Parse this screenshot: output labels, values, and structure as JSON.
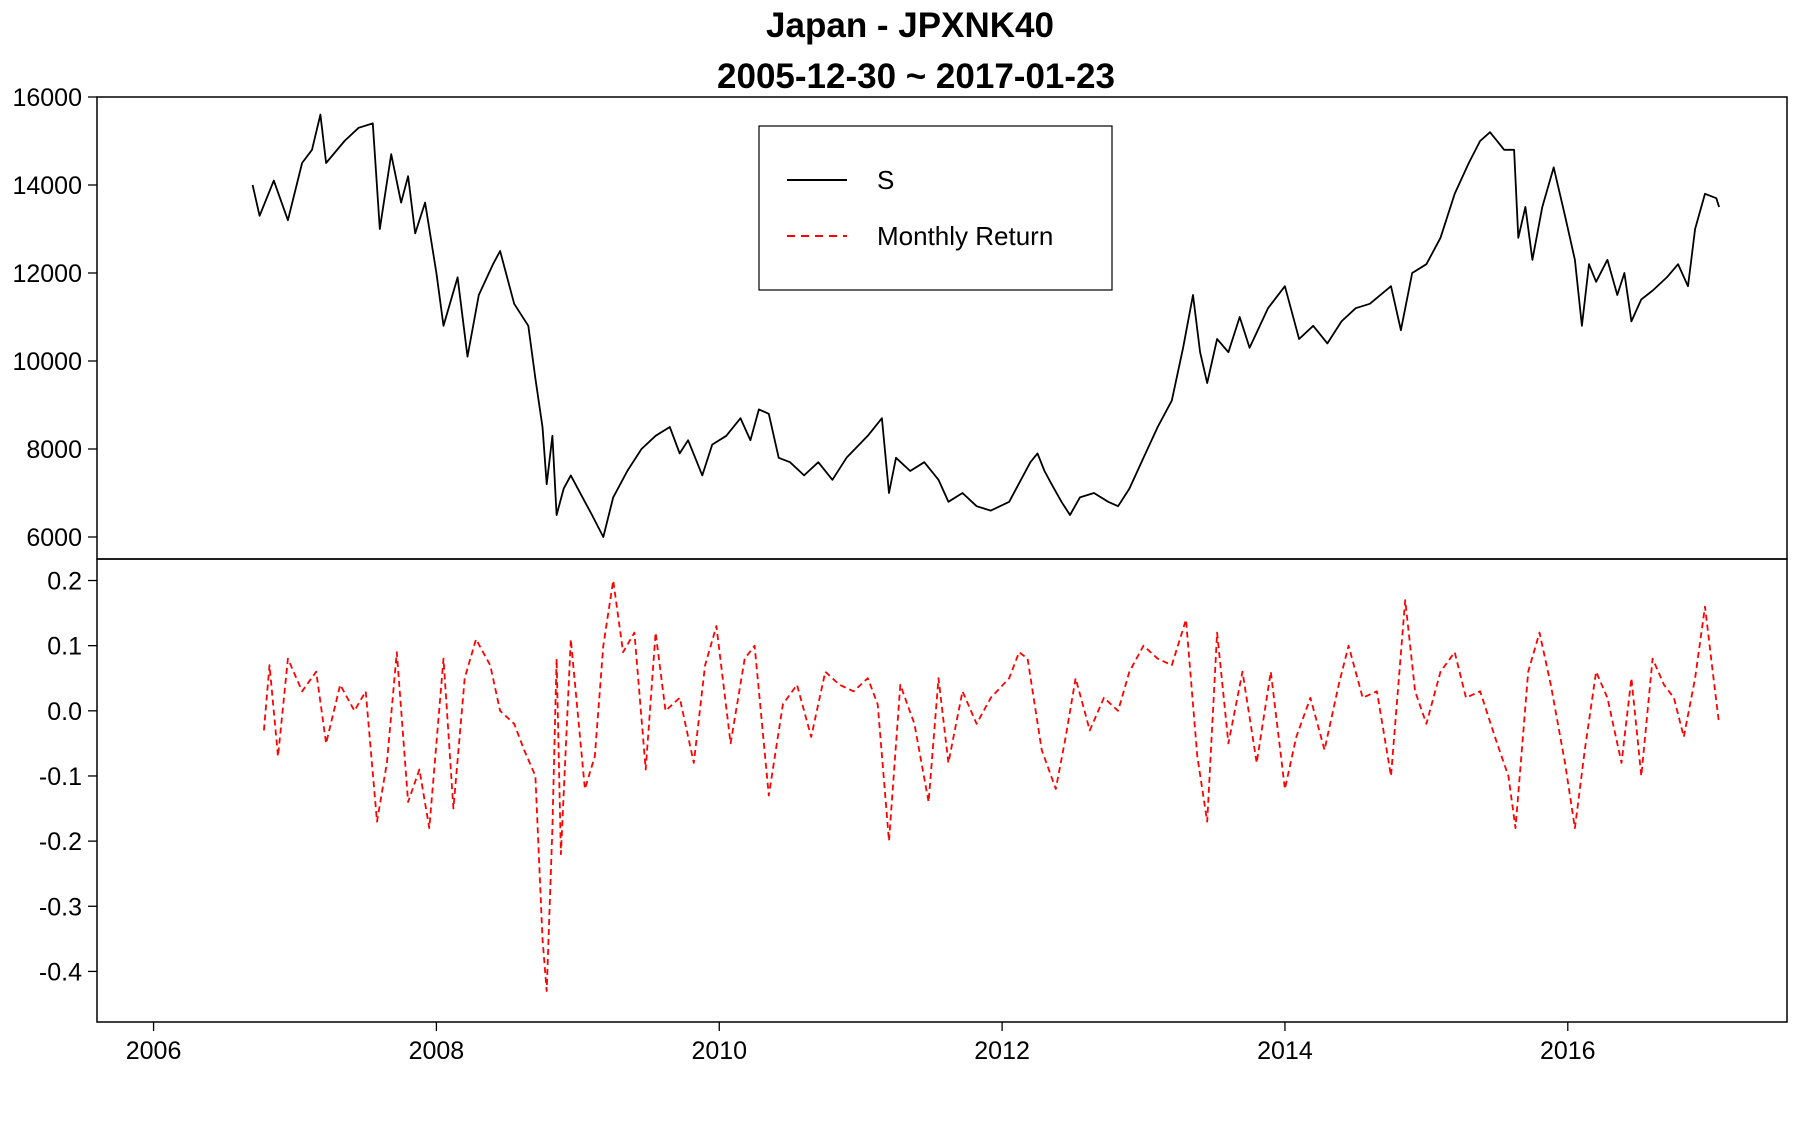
{
  "chart_data": {
    "type": "line",
    "title": "Japan - JPXNK40",
    "subtitle": "2005-12-30 ~ 2017-01-23",
    "xlabel": "",
    "ylabel": "",
    "x_range": [
      2005.6,
      2017.55
    ],
    "x_ticks": [
      "2006",
      "2008",
      "2010",
      "2012",
      "2014",
      "2016"
    ],
    "legend": {
      "placement": "top-center",
      "entries": [
        {
          "label": "S",
          "color": "#000000",
          "dash": "solid"
        },
        {
          "label": "Monthly Return",
          "color": "#ff0000",
          "dash": "dashed"
        }
      ]
    },
    "panels": [
      {
        "name": "price",
        "series_name": "S",
        "color": "#000000",
        "ylim": [
          5500,
          16000
        ],
        "y_ticks": [
          "6000",
          "8000",
          "10000",
          "12000",
          "14000",
          "16000"
        ],
        "points": [
          [
            2006.7,
            14000
          ],
          [
            2006.75,
            13300
          ],
          [
            2006.85,
            14100
          ],
          [
            2006.95,
            13200
          ],
          [
            2007.05,
            14500
          ],
          [
            2007.12,
            14800
          ],
          [
            2007.18,
            15600
          ],
          [
            2007.22,
            14500
          ],
          [
            2007.35,
            15000
          ],
          [
            2007.45,
            15300
          ],
          [
            2007.55,
            15400
          ],
          [
            2007.6,
            13000
          ],
          [
            2007.68,
            14700
          ],
          [
            2007.75,
            13600
          ],
          [
            2007.8,
            14200
          ],
          [
            2007.85,
            12900
          ],
          [
            2007.92,
            13600
          ],
          [
            2008.0,
            12000
          ],
          [
            2008.05,
            10800
          ],
          [
            2008.15,
            11900
          ],
          [
            2008.22,
            10100
          ],
          [
            2008.3,
            11500
          ],
          [
            2008.4,
            12200
          ],
          [
            2008.45,
            12500
          ],
          [
            2008.55,
            11300
          ],
          [
            2008.65,
            10800
          ],
          [
            2008.7,
            9600
          ],
          [
            2008.75,
            8500
          ],
          [
            2008.78,
            7200
          ],
          [
            2008.82,
            8300
          ],
          [
            2008.85,
            6500
          ],
          [
            2008.9,
            7100
          ],
          [
            2008.95,
            7400
          ],
          [
            2009.05,
            6800
          ],
          [
            2009.1,
            6500
          ],
          [
            2009.18,
            6000
          ],
          [
            2009.25,
            6900
          ],
          [
            2009.35,
            7500
          ],
          [
            2009.45,
            8000
          ],
          [
            2009.55,
            8300
          ],
          [
            2009.65,
            8500
          ],
          [
            2009.72,
            7900
          ],
          [
            2009.78,
            8200
          ],
          [
            2009.88,
            7400
          ],
          [
            2009.95,
            8100
          ],
          [
            2010.05,
            8300
          ],
          [
            2010.15,
            8700
          ],
          [
            2010.22,
            8200
          ],
          [
            2010.28,
            8900
          ],
          [
            2010.35,
            8800
          ],
          [
            2010.42,
            7800
          ],
          [
            2010.5,
            7700
          ],
          [
            2010.6,
            7400
          ],
          [
            2010.7,
            7700
          ],
          [
            2010.8,
            7300
          ],
          [
            2010.9,
            7800
          ],
          [
            2011.05,
            8300
          ],
          [
            2011.15,
            8700
          ],
          [
            2011.2,
            7000
          ],
          [
            2011.25,
            7800
          ],
          [
            2011.35,
            7500
          ],
          [
            2011.45,
            7700
          ],
          [
            2011.55,
            7300
          ],
          [
            2011.62,
            6800
          ],
          [
            2011.72,
            7000
          ],
          [
            2011.82,
            6700
          ],
          [
            2011.92,
            6600
          ],
          [
            2012.05,
            6800
          ],
          [
            2012.15,
            7400
          ],
          [
            2012.2,
            7700
          ],
          [
            2012.25,
            7900
          ],
          [
            2012.3,
            7500
          ],
          [
            2012.35,
            7200
          ],
          [
            2012.42,
            6800
          ],
          [
            2012.48,
            6500
          ],
          [
            2012.55,
            6900
          ],
          [
            2012.65,
            7000
          ],
          [
            2012.75,
            6800
          ],
          [
            2012.82,
            6700
          ],
          [
            2012.9,
            7100
          ],
          [
            2013.0,
            7800
          ],
          [
            2013.1,
            8500
          ],
          [
            2013.2,
            9100
          ],
          [
            2013.28,
            10300
          ],
          [
            2013.35,
            11500
          ],
          [
            2013.4,
            10200
          ],
          [
            2013.45,
            9500
          ],
          [
            2013.52,
            10500
          ],
          [
            2013.6,
            10200
          ],
          [
            2013.68,
            11000
          ],
          [
            2013.75,
            10300
          ],
          [
            2013.88,
            11200
          ],
          [
            2014.0,
            11700
          ],
          [
            2014.1,
            10500
          ],
          [
            2014.2,
            10800
          ],
          [
            2014.3,
            10400
          ],
          [
            2014.4,
            10900
          ],
          [
            2014.5,
            11200
          ],
          [
            2014.6,
            11300
          ],
          [
            2014.75,
            11700
          ],
          [
            2014.82,
            10700
          ],
          [
            2014.9,
            12000
          ],
          [
            2015.0,
            12200
          ],
          [
            2015.1,
            12800
          ],
          [
            2015.2,
            13800
          ],
          [
            2015.3,
            14500
          ],
          [
            2015.38,
            15000
          ],
          [
            2015.45,
            15200
          ],
          [
            2015.55,
            14800
          ],
          [
            2015.62,
            14800
          ],
          [
            2015.65,
            12800
          ],
          [
            2015.7,
            13500
          ],
          [
            2015.75,
            12300
          ],
          [
            2015.82,
            13500
          ],
          [
            2015.9,
            14400
          ],
          [
            2015.98,
            13300
          ],
          [
            2016.05,
            12300
          ],
          [
            2016.1,
            10800
          ],
          [
            2016.15,
            12200
          ],
          [
            2016.2,
            11800
          ],
          [
            2016.28,
            12300
          ],
          [
            2016.35,
            11500
          ],
          [
            2016.4,
            12000
          ],
          [
            2016.45,
            10900
          ],
          [
            2016.52,
            11400
          ],
          [
            2016.6,
            11600
          ],
          [
            2016.7,
            11900
          ],
          [
            2016.78,
            12200
          ],
          [
            2016.85,
            11700
          ],
          [
            2016.9,
            13000
          ],
          [
            2016.97,
            13800
          ],
          [
            2017.05,
            13700
          ],
          [
            2017.07,
            13500
          ]
        ]
      },
      {
        "name": "returns",
        "series_name": "Monthly Return",
        "color": "#ff0000",
        "ylim": [
          -0.45,
          0.21
        ],
        "y_ticks": [
          "-0.4",
          "-0.3",
          "-0.2",
          "-0.1",
          "0.0",
          "0.1",
          "0.2"
        ],
        "points": [
          [
            2006.78,
            -0.03
          ],
          [
            2006.82,
            0.07
          ],
          [
            2006.88,
            -0.07
          ],
          [
            2006.95,
            0.08
          ],
          [
            2007.05,
            0.03
          ],
          [
            2007.15,
            0.06
          ],
          [
            2007.22,
            -0.05
          ],
          [
            2007.32,
            0.04
          ],
          [
            2007.42,
            0.0
          ],
          [
            2007.5,
            0.03
          ],
          [
            2007.58,
            -0.17
          ],
          [
            2007.65,
            -0.08
          ],
          [
            2007.72,
            0.09
          ],
          [
            2007.8,
            -0.14
          ],
          [
            2007.88,
            -0.09
          ],
          [
            2007.95,
            -0.18
          ],
          [
            2008.05,
            0.08
          ],
          [
            2008.12,
            -0.15
          ],
          [
            2008.2,
            0.05
          ],
          [
            2008.28,
            0.11
          ],
          [
            2008.38,
            0.07
          ],
          [
            2008.45,
            0.0
          ],
          [
            2008.55,
            -0.02
          ],
          [
            2008.62,
            -0.06
          ],
          [
            2008.7,
            -0.1
          ],
          [
            2008.75,
            -0.35
          ],
          [
            2008.78,
            -0.43
          ],
          [
            2008.82,
            -0.18
          ],
          [
            2008.85,
            0.08
          ],
          [
            2008.88,
            -0.22
          ],
          [
            2008.95,
            0.11
          ],
          [
            2009.05,
            -0.12
          ],
          [
            2009.12,
            -0.07
          ],
          [
            2009.18,
            0.1
          ],
          [
            2009.25,
            0.2
          ],
          [
            2009.32,
            0.09
          ],
          [
            2009.4,
            0.12
          ],
          [
            2009.48,
            -0.09
          ],
          [
            2009.55,
            0.12
          ],
          [
            2009.62,
            0.0
          ],
          [
            2009.72,
            0.02
          ],
          [
            2009.82,
            -0.08
          ],
          [
            2009.9,
            0.07
          ],
          [
            2009.98,
            0.13
          ],
          [
            2010.08,
            -0.05
          ],
          [
            2010.18,
            0.08
          ],
          [
            2010.25,
            0.1
          ],
          [
            2010.35,
            -0.13
          ],
          [
            2010.45,
            0.01
          ],
          [
            2010.55,
            0.04
          ],
          [
            2010.65,
            -0.04
          ],
          [
            2010.75,
            0.06
          ],
          [
            2010.85,
            0.04
          ],
          [
            2010.95,
            0.03
          ],
          [
            2011.05,
            0.05
          ],
          [
            2011.12,
            0.01
          ],
          [
            2011.2,
            -0.2
          ],
          [
            2011.28,
            0.04
          ],
          [
            2011.38,
            -0.02
          ],
          [
            2011.48,
            -0.14
          ],
          [
            2011.55,
            0.05
          ],
          [
            2011.62,
            -0.08
          ],
          [
            2011.72,
            0.03
          ],
          [
            2011.82,
            -0.02
          ],
          [
            2011.92,
            0.02
          ],
          [
            2012.05,
            0.05
          ],
          [
            2012.12,
            0.09
          ],
          [
            2012.18,
            0.08
          ],
          [
            2012.28,
            -0.06
          ],
          [
            2012.38,
            -0.12
          ],
          [
            2012.45,
            -0.04
          ],
          [
            2012.52,
            0.05
          ],
          [
            2012.62,
            -0.03
          ],
          [
            2012.72,
            0.02
          ],
          [
            2012.82,
            0.0
          ],
          [
            2012.9,
            0.06
          ],
          [
            2013.0,
            0.1
          ],
          [
            2013.1,
            0.08
          ],
          [
            2013.2,
            0.07
          ],
          [
            2013.3,
            0.14
          ],
          [
            2013.38,
            -0.07
          ],
          [
            2013.45,
            -0.17
          ],
          [
            2013.52,
            0.12
          ],
          [
            2013.6,
            -0.05
          ],
          [
            2013.7,
            0.06
          ],
          [
            2013.8,
            -0.08
          ],
          [
            2013.9,
            0.06
          ],
          [
            2014.0,
            -0.12
          ],
          [
            2014.08,
            -0.04
          ],
          [
            2014.18,
            0.02
          ],
          [
            2014.28,
            -0.06
          ],
          [
            2014.38,
            0.04
          ],
          [
            2014.45,
            0.1
          ],
          [
            2014.55,
            0.02
          ],
          [
            2014.65,
            0.03
          ],
          [
            2014.75,
            -0.1
          ],
          [
            2014.85,
            0.17
          ],
          [
            2014.92,
            0.03
          ],
          [
            2015.0,
            -0.02
          ],
          [
            2015.1,
            0.06
          ],
          [
            2015.2,
            0.09
          ],
          [
            2015.28,
            0.02
          ],
          [
            2015.38,
            0.03
          ],
          [
            2015.5,
            -0.05
          ],
          [
            2015.58,
            -0.1
          ],
          [
            2015.63,
            -0.18
          ],
          [
            2015.72,
            0.06
          ],
          [
            2015.8,
            0.12
          ],
          [
            2015.88,
            0.04
          ],
          [
            2015.98,
            -0.08
          ],
          [
            2016.05,
            -0.18
          ],
          [
            2016.12,
            -0.06
          ],
          [
            2016.2,
            0.06
          ],
          [
            2016.28,
            0.02
          ],
          [
            2016.38,
            -0.08
          ],
          [
            2016.45,
            0.05
          ],
          [
            2016.52,
            -0.1
          ],
          [
            2016.6,
            0.08
          ],
          [
            2016.68,
            0.04
          ],
          [
            2016.75,
            0.02
          ],
          [
            2016.82,
            -0.04
          ],
          [
            2016.9,
            0.05
          ],
          [
            2016.97,
            0.16
          ],
          [
            2017.03,
            0.05
          ],
          [
            2017.07,
            -0.02
          ]
        ]
      }
    ]
  }
}
